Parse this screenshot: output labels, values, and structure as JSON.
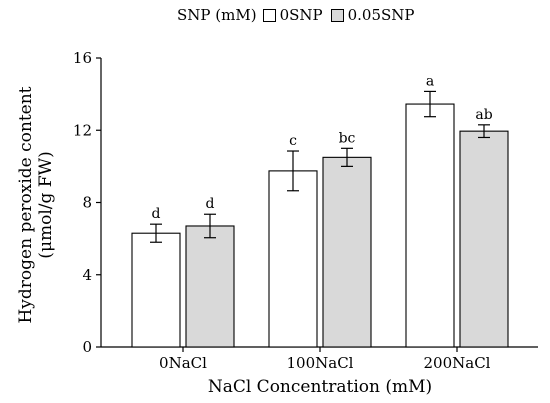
{
  "chart_data": {
    "type": "bar",
    "categories": [
      "0NaCl",
      "100NaCl",
      "200NaCl"
    ],
    "series": [
      {
        "name": "0SNP",
        "color": "#ffffff",
        "values": [
          6.3,
          9.75,
          13.45
        ],
        "errors": [
          0.5,
          1.1,
          0.7
        ],
        "labels": [
          "d",
          "c",
          "a"
        ]
      },
      {
        "name": "0.05SNP",
        "color": "#d9d9d9",
        "values": [
          6.7,
          10.5,
          11.95
        ],
        "errors": [
          0.65,
          0.5,
          0.35
        ],
        "labels": [
          "d",
          "bc",
          "ab"
        ]
      }
    ],
    "ylim": [
      0,
      16
    ],
    "yticks": [
      0,
      4,
      8,
      12,
      16
    ],
    "xlabel": "NaCl Concentration (mM)",
    "ylabel_line1": "Hydrogen peroxide content",
    "ylabel_line2": "(μmol/g FW)",
    "legend_title": "SNP (mM)",
    "legend_position": "top",
    "grid": false
  }
}
